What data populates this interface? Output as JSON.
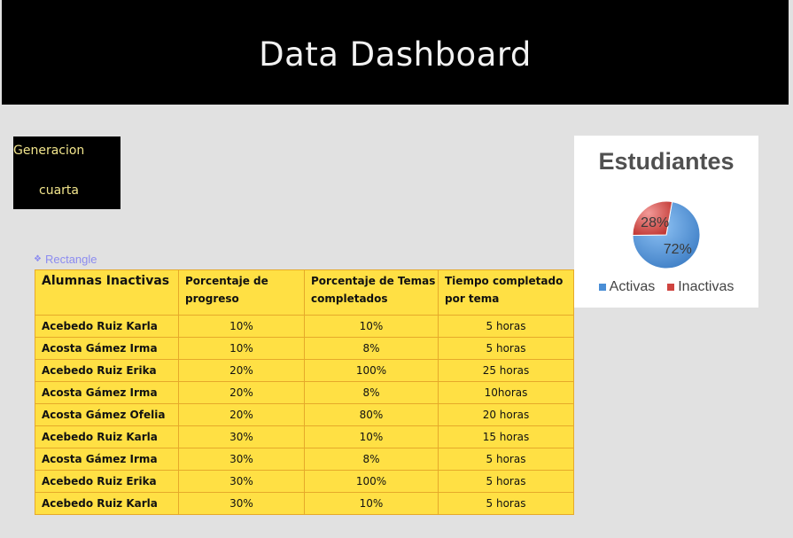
{
  "header": {
    "title": "Data Dashboard"
  },
  "generation_box": {
    "line1": "Generacion",
    "line2": "cuarta"
  },
  "rectangle_label": "Rectangle",
  "table": {
    "headers": [
      "Alumnas Inactivas",
      "Porcentaje de progreso",
      "Porcentaje de Temas completados",
      "Tiempo completado por tema"
    ],
    "rows": [
      {
        "name": "Acebedo Ruiz Karla",
        "progreso": "10%",
        "temas": "10%",
        "tiempo": "5 horas"
      },
      {
        "name": "Acosta Gámez Irma",
        "progreso": "10%",
        "temas": "8%",
        "tiempo": "5 horas"
      },
      {
        "name": "Acebedo Ruiz Erika",
        "progreso": "20%",
        "temas": "100%",
        "tiempo": "25 horas"
      },
      {
        "name": "Acosta Gámez Irma",
        "progreso": "20%",
        "temas": "8%",
        "tiempo": "10horas"
      },
      {
        "name": "Acosta Gámez Ofelia",
        "progreso": "20%",
        "temas": "80%",
        "tiempo": "20 horas"
      },
      {
        "name": "Acebedo Ruiz Karla",
        "progreso": "30%",
        "temas": "10%",
        "tiempo": "15 horas"
      },
      {
        "name": "Acosta Gámez Irma",
        "progreso": "30%",
        "temas": "8%",
        "tiempo": "5 horas"
      },
      {
        "name": "Acebedo Ruiz Erika",
        "progreso": "30%",
        "temas": "100%",
        "tiempo": "5 horas"
      },
      {
        "name": "Acebedo Ruiz Karla",
        "progreso": "30%",
        "temas": "10%",
        "tiempo": "5 horas"
      }
    ]
  },
  "chart_data": {
    "type": "pie",
    "title": "Estudiantes",
    "categories": [
      "Activas",
      "Inactivas"
    ],
    "values": [
      72,
      28
    ],
    "labels": [
      "72%",
      "28%"
    ],
    "colors": [
      "#5b9bd5",
      "#d9534f"
    ],
    "legend": "bottom"
  },
  "colors": {
    "header_bg": "#000000",
    "page_bg": "#e1e1e1",
    "table_bg": "#ffe044",
    "table_border": "#e6a92a",
    "gen_text": "#f2e58c"
  }
}
